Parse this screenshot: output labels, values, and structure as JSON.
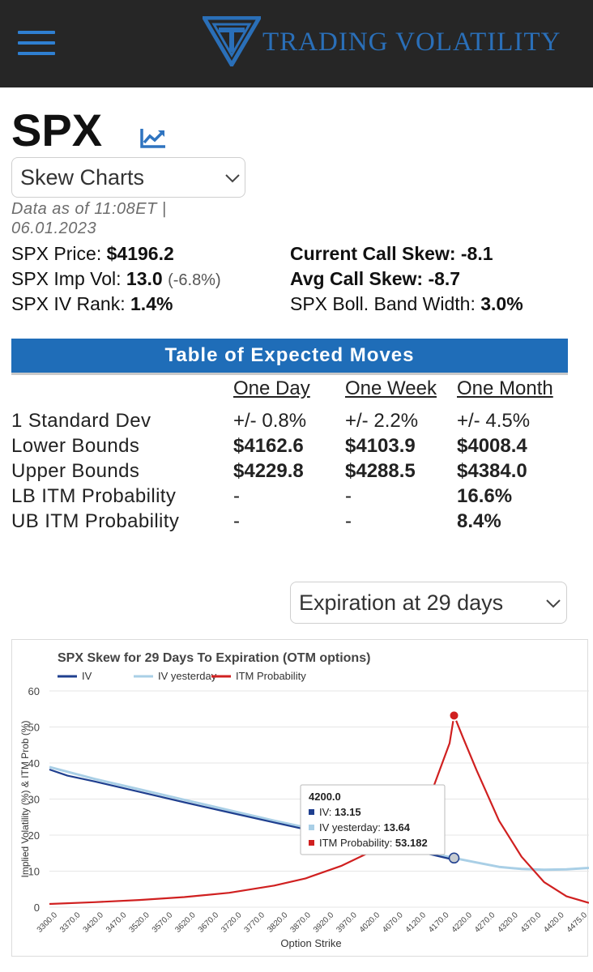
{
  "header": {
    "brand": "TRADING VOLATILITY",
    "brand_color": "#2a6fb8",
    "menu_icon": "hamburger-menu-icon",
    "logo_icon": "tv-shield-logo-icon"
  },
  "page": {
    "ticker": "SPX",
    "chart_icon": "trend-chart-icon",
    "view_selected": "Skew Charts",
    "as_of": "Data as of 11:08ET | 06.01.2023"
  },
  "stats": {
    "price_label": "SPX Price:",
    "price_value": "$4196.2",
    "impvol_label": "SPX Imp Vol:",
    "impvol_value": "13.0",
    "impvol_change": "(-6.8%)",
    "ivrank_label": "SPX IV Rank:",
    "ivrank_value": "1.4%",
    "callskew_label": "Current Call Skew:",
    "callskew_value": "-8.1",
    "avgskew_label": "Avg Call Skew:",
    "avgskew_value": "-8.7",
    "boll_label": "SPX Boll. Band Width:",
    "boll_value": "3.0%"
  },
  "expected_moves": {
    "title": "Table of Expected Moves",
    "columns": [
      "One Day",
      "One Week",
      "One Month"
    ],
    "rows": [
      {
        "label": "1 Standard Dev",
        "values": [
          "+/- 0.8%",
          "+/- 2.2%",
          "+/- 4.5%"
        ]
      },
      {
        "label": "Lower Bounds",
        "values": [
          "$4162.6",
          "$4103.9",
          "$4008.4"
        ]
      },
      {
        "label": "Upper Bounds",
        "values": [
          "$4229.8",
          "$4288.5",
          "$4384.0"
        ]
      },
      {
        "label": "LB ITM Probability",
        "values": [
          "-",
          "-",
          "16.6%"
        ]
      },
      {
        "label": "UB ITM Probability",
        "values": [
          "-",
          "-",
          "8.4%"
        ]
      }
    ]
  },
  "expiration": {
    "selected": "Expiration at 29 days"
  },
  "chart_data": {
    "type": "line",
    "title": "SPX Skew for 29 Days To Expiration (OTM options)",
    "xlabel": "Option Strike",
    "ylabel": "Implied Volatility (%) & ITM Prob (%)",
    "ylim": [
      0,
      60
    ],
    "yticks": [
      0,
      10,
      20,
      30,
      40,
      50,
      60
    ],
    "xlim": [
      3300,
      4500
    ],
    "xticks": [
      "3300.0",
      "3370.0",
      "3420.0",
      "3470.0",
      "3520.0",
      "3570.0",
      "3620.0",
      "3670.0",
      "3720.0",
      "3770.0",
      "3820.0",
      "3870.0",
      "3920.0",
      "3970.0",
      "4020.0",
      "4070.0",
      "4120.0",
      "4170.0",
      "4220.0",
      "4270.0",
      "4320.0",
      "4370.0",
      "4420.0",
      "4475.0"
    ],
    "grid": true,
    "legend": "top-left",
    "series": [
      {
        "name": "IV",
        "color": "#1f3f8f",
        "points": [
          [
            3300,
            38.2
          ],
          [
            3340,
            36.5
          ],
          [
            3400,
            34.9
          ],
          [
            3500,
            32.0
          ],
          [
            3600,
            29.1
          ],
          [
            3700,
            26.3
          ],
          [
            3800,
            23.5
          ],
          [
            3870,
            21.6
          ],
          [
            3950,
            19.6
          ],
          [
            4050,
            17.2
          ],
          [
            4150,
            14.6
          ],
          [
            4200,
            13.15
          ]
        ]
      },
      {
        "name": "IV yesterday",
        "color": "#a9cfe6",
        "points": [
          [
            3300,
            38.9
          ],
          [
            3400,
            35.6
          ],
          [
            3500,
            32.7
          ],
          [
            3600,
            29.8
          ],
          [
            3700,
            26.9
          ],
          [
            3800,
            24.0
          ],
          [
            3900,
            21.3
          ],
          [
            4000,
            18.9
          ],
          [
            4100,
            16.4
          ],
          [
            4200,
            13.64
          ],
          [
            4250,
            12.4
          ],
          [
            4300,
            11.2
          ],
          [
            4350,
            10.6
          ],
          [
            4400,
            10.4
          ],
          [
            4450,
            10.5
          ],
          [
            4500,
            10.9
          ]
        ]
      },
      {
        "name": "ITM Probability",
        "color": "#d02020",
        "points": [
          [
            3300,
            0.9
          ],
          [
            3400,
            1.4
          ],
          [
            3500,
            2.0
          ],
          [
            3600,
            2.8
          ],
          [
            3700,
            4.0
          ],
          [
            3800,
            6.0
          ],
          [
            3870,
            8.0
          ],
          [
            3950,
            11.5
          ],
          [
            4050,
            17.5
          ],
          [
            4100,
            23.0
          ],
          [
            4150,
            32.0
          ],
          [
            4190,
            45.5
          ],
          [
            4200,
            53.182
          ],
          [
            4220,
            47.0
          ],
          [
            4250,
            38.0
          ],
          [
            4300,
            24.0
          ],
          [
            4350,
            14.0
          ],
          [
            4400,
            7.0
          ],
          [
            4450,
            3.0
          ],
          [
            4500,
            1.2
          ]
        ]
      }
    ],
    "tooltip": {
      "x": "4200.0",
      "rows": [
        {
          "label": "IV:",
          "value": "13.15",
          "color": "#1f3f8f"
        },
        {
          "label": "IV yesterday:",
          "value": "13.64",
          "color": "#a9cfe6"
        },
        {
          "label": "ITM Probability:",
          "value": "53.182",
          "color": "#d02020"
        }
      ]
    }
  }
}
